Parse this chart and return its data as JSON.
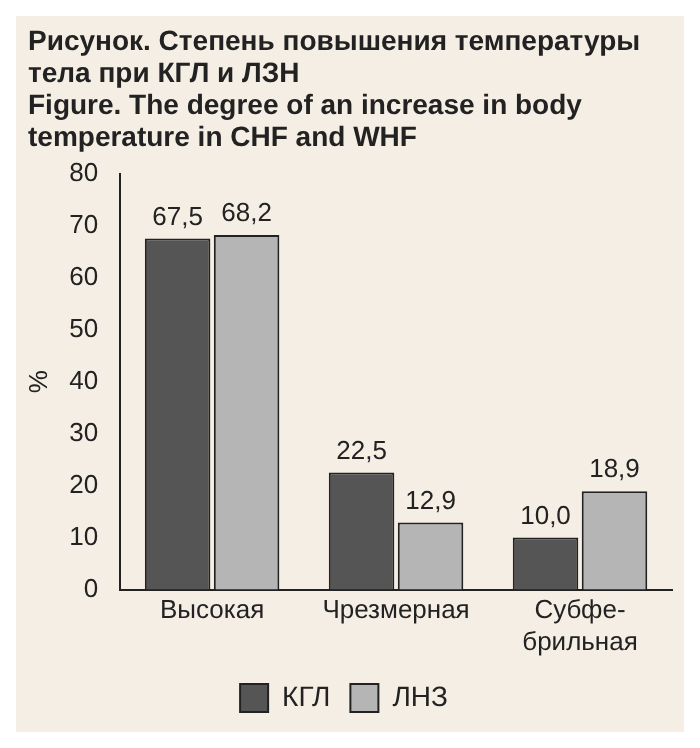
{
  "chart_data": {
    "type": "bar",
    "title": "Рисунок. Степень повышения температуры тела при КГЛ и ЛЗН",
    "subtitle": "Figure. The degree of an increase in body temperature in CHF and WHF",
    "ylabel": "%",
    "categories": [
      "Высокая",
      "Чрезмерная",
      "Субфе-\nбрильная"
    ],
    "series": [
      {
        "name": "КГЛ",
        "color": "#555555",
        "values": [
          67.5,
          22.5,
          10.0
        ],
        "value_labels": [
          "67,5",
          "22,5",
          "10,0"
        ]
      },
      {
        "name": "ЛНЗ",
        "color": "#b5b5b5",
        "values": [
          68.2,
          12.9,
          18.9
        ],
        "value_labels": [
          "68,2",
          "12,9",
          "18,9"
        ]
      }
    ],
    "ylim": [
      0,
      80
    ],
    "yticks": [
      0,
      10,
      20,
      30,
      40,
      50,
      60,
      70,
      80
    ],
    "grid": false,
    "legend": "bottom"
  }
}
